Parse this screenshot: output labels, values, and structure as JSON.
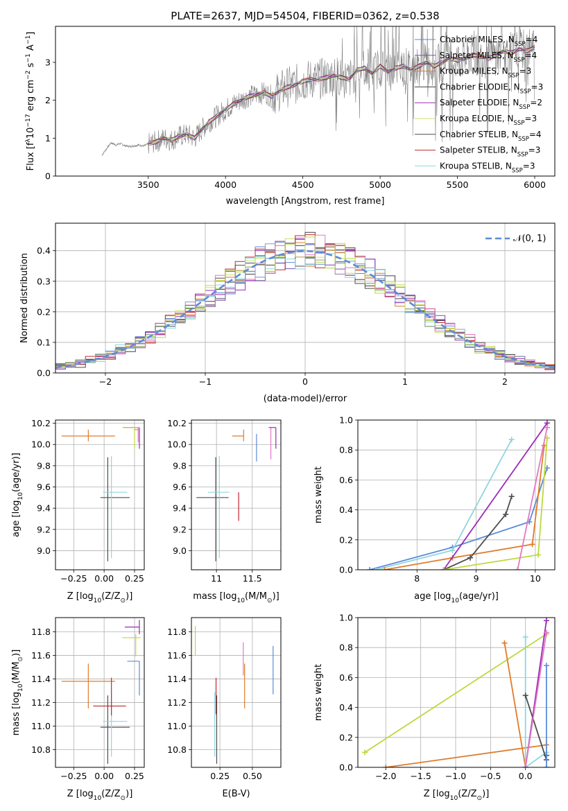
{
  "figure_title": "PLATE=2637, MJD=54504, FIBERID=0362, z=0.538",
  "colors": {
    "Chabrier MILES": "#5b8bd8",
    "Salpeter MILES": "#7a52a8",
    "Kroupa MILES": "#e07b2a",
    "Chabrier ELODIE": "#404040",
    "Salpeter ELODIE": "#9a2bb8",
    "Kroupa ELODIE": "#c7e36e",
    "Chabrier STELIB": "#4d4d4d",
    "Salpeter STELIB": "#c0272d",
    "Kroupa STELIB": "#8fd6de",
    "extra_pink": "#e377c2",
    "extra_lime": "#bcd93c",
    "extra_steel": "#7f9fbf",
    "normal_curve": "#5b8bd8",
    "data_spectrum": "#808080"
  },
  "chart_data": [
    {
      "id": "spectrum",
      "type": "line",
      "title": "PLATE=2637, MJD=54504, FIBERID=0362, z=0.538",
      "xlabel": "wavelength [Angstrom, rest frame]",
      "ylabel_parts": [
        "Flux [f",
        "λ",
        "10",
        "−17",
        " erg cm",
        "−2",
        " s",
        "−1",
        " A",
        "−1",
        "]"
      ],
      "xlim": [
        2900,
        6130
      ],
      "ylim": [
        0,
        3.95
      ],
      "xticks": [
        3500,
        4000,
        4500,
        5000,
        5500,
        6000
      ],
      "yticks": [
        0,
        1,
        2,
        3
      ],
      "legend_position": "upper right",
      "legend": [
        {
          "name": "Chabrier MILES",
          "nssp": "4",
          "color": "#5b8bd8"
        },
        {
          "name": "Salpeter MILES",
          "nssp": "4",
          "color": "#7a52a8"
        },
        {
          "name": "Kroupa MILES",
          "nssp": "3",
          "color": "#e07b2a"
        },
        {
          "name": "Chabrier ELODIE",
          "nssp": "3",
          "color": "#404040"
        },
        {
          "name": "Salpeter ELODIE",
          "nssp": "2",
          "color": "#9a2bb8"
        },
        {
          "name": "Kroupa ELODIE",
          "nssp": "3",
          "color": "#c7e36e"
        },
        {
          "name": "Chabrier STELIB",
          "nssp": "4",
          "color": "#4d4d4d"
        },
        {
          "name": "Salpeter STELIB",
          "nssp": "3",
          "color": "#c0272d"
        },
        {
          "name": "Kroupa STELIB",
          "nssp": "3",
          "color": "#8fd6de"
        }
      ],
      "data_x": [
        3200,
        3230,
        3260,
        3290,
        3320,
        3350,
        3380,
        3410,
        3440,
        3470,
        3500,
        3550,
        3600,
        3650,
        3700,
        3750,
        3800,
        3850,
        3900,
        3950,
        4000,
        4050,
        4100,
        4150,
        4200,
        4250,
        4300,
        4350,
        4400,
        4450,
        4500,
        4550,
        4600,
        4650,
        4700,
        4750,
        4800,
        4850,
        4900,
        4950,
        5000,
        5050,
        5100,
        5150,
        5200,
        5250,
        5300,
        5350,
        5400,
        5450,
        5500,
        5550,
        5600,
        5650,
        5700,
        5750,
        5800,
        5850,
        5900,
        5950,
        6000
      ],
      "data_y": [
        0.55,
        0.72,
        0.88,
        0.82,
        0.86,
        0.8,
        0.78,
        0.8,
        0.82,
        0.79,
        0.85,
        0.9,
        1.0,
        0.95,
        1.05,
        1.1,
        1.0,
        1.25,
        1.45,
        1.6,
        1.75,
        1.9,
        2.0,
        2.1,
        2.15,
        2.2,
        2.1,
        2.25,
        2.35,
        2.4,
        2.5,
        2.55,
        2.55,
        2.6,
        2.65,
        2.6,
        2.55,
        2.8,
        2.85,
        2.7,
        2.9,
        2.75,
        2.85,
        2.9,
        2.8,
        2.9,
        3.0,
        2.9,
        3.0,
        3.1,
        3.05,
        3.1,
        3.2,
        3.15,
        3.1,
        3.2,
        3.3,
        3.25,
        3.35,
        3.3,
        3.4
      ]
    },
    {
      "id": "residuals",
      "type": "histogram",
      "xlabel": "(data-model)/error",
      "ylabel": "Normed distribution",
      "xlim": [
        -2.5,
        2.5
      ],
      "ylim": [
        0,
        0.49
      ],
      "xticks": [
        -2,
        -1,
        0,
        1,
        2
      ],
      "yticks": [
        0.0,
        0.1,
        0.2,
        0.3,
        0.4
      ],
      "grid": true,
      "legend": [
        {
          "name": "𝒩(0, 1)",
          "style": "dashed",
          "color": "#5b8bd8"
        }
      ],
      "legend_position": "upper right",
      "bin_edges_start": -2.5,
      "bin_width": 0.1,
      "reference_curve": "gaussian(0,1)"
    },
    {
      "id": "z_vs_age",
      "type": "errorbar",
      "xlabel_parts": [
        "Z [log",
        "10",
        "(Z/Z",
        "⊙",
        ")]"
      ],
      "ylabel_parts": [
        "age  [log",
        "10",
        "(age/yr)]"
      ],
      "xlim": [
        -0.4,
        0.33
      ],
      "ylim": [
        8.82,
        10.23
      ],
      "xticks": [
        -0.25,
        0.0,
        0.25
      ],
      "xticklabels": [
        "−0.25",
        "0.00",
        "0.25"
      ],
      "yticks": [
        9.0,
        9.2,
        9.4,
        9.6,
        9.8,
        10.0,
        10.2
      ],
      "grid": true,
      "points": [
        {
          "x": -0.13,
          "xerr": [
            0.22,
            0.22
          ],
          "y": 10.08,
          "yerr": [
            0.05,
            0.06
          ],
          "color": "#e07b2a"
        },
        {
          "x": 0.03,
          "xerr": [
            0.06,
            0.18
          ],
          "y": 9.5,
          "yerr": [
            0.6,
            0.38
          ],
          "color": "#4d4d4d"
        },
        {
          "x": 0.06,
          "xerr": [
            0.07,
            0.13
          ],
          "y": 9.55,
          "yerr": [
            0.62,
            0.34
          ],
          "color": "#8fd6de"
        },
        {
          "x": 0.29,
          "xerr": [
            0.13,
            0.0
          ],
          "y": 10.16,
          "yerr": [
            0.2,
            0.0
          ],
          "color": "#9a2bb8"
        },
        {
          "x": 0.25,
          "xerr": [
            0.1,
            0.04
          ],
          "y": 10.16,
          "yerr": [
            0.2,
            0.0
          ],
          "color": "#bcd93c"
        },
        {
          "x": 0.28,
          "xerr": [
            0.03,
            0.01
          ],
          "y": 10.14,
          "yerr": [
            0.12,
            0.02
          ],
          "color": "#e377c2"
        }
      ]
    },
    {
      "id": "mass_vs_age",
      "type": "errorbar",
      "xlabel_parts": [
        "mass [log",
        "10",
        "(M/M",
        "⊙",
        ")]"
      ],
      "xlim": [
        10.65,
        11.9
      ],
      "ylim": [
        8.82,
        10.23
      ],
      "xticks": [
        11.0,
        11.5
      ],
      "yticks": [
        9.0,
        9.2,
        9.4,
        9.6,
        9.8,
        10.0,
        10.2
      ],
      "grid": true,
      "points": [
        {
          "x": 10.99,
          "xerr": [
            0.27,
            0.18
          ],
          "y": 9.5,
          "yerr": [
            0.6,
            0.38
          ],
          "color": "#4d4d4d"
        },
        {
          "x": 11.04,
          "xerr": [
            0.16,
            0.14
          ],
          "y": 9.55,
          "yerr": [
            0.62,
            0.34
          ],
          "color": "#8fd6de"
        },
        {
          "x": 11.31,
          "xerr": [
            0.0,
            0.0
          ],
          "y": 9.55,
          "yerr": [
            0.27,
            0.0
          ],
          "color": "#c0272d"
        },
        {
          "x": 11.38,
          "xerr": [
            0.16,
            0.0
          ],
          "y": 10.08,
          "yerr": [
            0.05,
            0.06
          ],
          "color": "#e07b2a"
        },
        {
          "x": 11.56,
          "xerr": [
            0.0,
            0.0
          ],
          "y": 10.1,
          "yerr": [
            0.26,
            0.0
          ],
          "color": "#5b8bd8"
        },
        {
          "x": 11.76,
          "xerr": [
            0.0,
            0.0
          ],
          "y": 10.14,
          "yerr": [
            0.28,
            0.02
          ],
          "color": "#e377c2"
        },
        {
          "x": 11.83,
          "xerr": [
            0.1,
            0.0
          ],
          "y": 10.16,
          "yerr": [
            0.2,
            0.0
          ],
          "color": "#9a2bb8"
        }
      ]
    },
    {
      "id": "age_vs_weight",
      "type": "line",
      "xlabel_parts": [
        "age  [log",
        "10",
        "(age/yr)]"
      ],
      "ylabel": "mass weight",
      "xlim": [
        7.0,
        10.33
      ],
      "ylim": [
        0,
        1.0
      ],
      "xticks": [
        8,
        9,
        10
      ],
      "yticks": [
        0.0,
        0.2,
        0.4,
        0.6,
        0.8,
        1.0
      ],
      "grid": true,
      "series": [
        {
          "color": "#5b8bd8",
          "x": [
            7.2,
            8.6,
            9.9,
            10.2
          ],
          "y": [
            0.0,
            0.15,
            0.32,
            0.68
          ]
        },
        {
          "color": "#8fd6de",
          "x": [
            7.3,
            8.6,
            9.6
          ],
          "y": [
            0.0,
            0.13,
            0.87
          ]
        },
        {
          "color": "#e07b2a",
          "x": [
            7.45,
            8.6,
            9.95,
            10.15
          ],
          "y": [
            0.0,
            0.08,
            0.17,
            0.83
          ]
        },
        {
          "color": "#9a2bb8",
          "x": [
            8.45,
            10.2
          ],
          "y": [
            0.0,
            0.98
          ]
        },
        {
          "color": "#4d4d4d",
          "x": [
            8.45,
            8.9,
            9.5,
            9.6
          ],
          "y": [
            0.0,
            0.08,
            0.37,
            0.49
          ]
        },
        {
          "color": "#bcd93c",
          "x": [
            8.45,
            10.05,
            10.2
          ],
          "y": [
            0.0,
            0.1,
            0.88
          ]
        },
        {
          "color": "#e377c2",
          "x": [
            9.7,
            10.2
          ],
          "y": [
            0.0,
            0.95
          ]
        }
      ]
    },
    {
      "id": "z_vs_mass",
      "type": "errorbar",
      "xlabel_parts": [
        "Z [log",
        "10",
        "(Z/Z",
        "⊙",
        ")]"
      ],
      "ylabel_parts": [
        "mass [log",
        "10",
        "(M/M",
        "⊙",
        ")]"
      ],
      "xlim": [
        -0.4,
        0.33
      ],
      "ylim": [
        10.65,
        11.92
      ],
      "xticks": [
        -0.25,
        0.0,
        0.25
      ],
      "xticklabels": [
        "−0.25",
        "0.00",
        "0.25"
      ],
      "yticks": [
        10.8,
        11.0,
        11.2,
        11.4,
        11.6,
        11.8
      ],
      "grid": true,
      "points": [
        {
          "x": -0.13,
          "xerr": [
            0.22,
            0.22
          ],
          "y": 11.38,
          "yerr": [
            0.23,
            0.15
          ],
          "color": "#e07b2a"
        },
        {
          "x": 0.03,
          "xerr": [
            0.06,
            0.18
          ],
          "y": 10.99,
          "yerr": [
            0.31,
            0.27
          ],
          "color": "#4d4d4d"
        },
        {
          "x": 0.06,
          "xerr": [
            0.07,
            0.13
          ],
          "y": 11.04,
          "yerr": [
            0.3,
            0.25
          ],
          "color": "#8fd6de"
        },
        {
          "x": 0.06,
          "xerr": [
            0.15,
            0.12
          ],
          "y": 11.17,
          "yerr": [
            0.08,
            0.24
          ],
          "color": "#c0272d"
        },
        {
          "x": 0.29,
          "xerr": [
            0.12,
            0.0
          ],
          "y": 11.84,
          "yerr": [
            0.06,
            0.06
          ],
          "color": "#9a2bb8"
        },
        {
          "x": 0.26,
          "xerr": [
            0.11,
            0.04
          ],
          "y": 11.75,
          "yerr": [
            0.16,
            0.03
          ],
          "color": "#bcd93c"
        },
        {
          "x": 0.29,
          "xerr": [
            0.1,
            0.0
          ],
          "y": 11.55,
          "yerr": [
            0.29,
            0.0
          ],
          "color": "#5b8bd8"
        }
      ]
    },
    {
      "id": "ebv_vs_mass",
      "type": "errorbar",
      "xlabel": "E(B-V)",
      "xlim": [
        0.03,
        0.72
      ],
      "ylim": [
        10.65,
        11.92
      ],
      "xticks": [
        0.25,
        0.5
      ],
      "xticklabels": [
        "0.25",
        "0.50"
      ],
      "yticks": [
        10.8,
        11.0,
        11.2,
        11.4,
        11.6,
        11.8
      ],
      "grid": true,
      "points": [
        {
          "x": 0.06,
          "y": 11.75,
          "yerr": [
            0.15,
            0.1
          ],
          "color": "#bcd93c"
        },
        {
          "x": 0.22,
          "y": 11.3,
          "yerr": [
            0.2,
            0.11
          ],
          "color": "#c0272d"
        },
        {
          "x": 0.225,
          "y": 10.99,
          "yerr": [
            0.31,
            0.27
          ],
          "color": "#4d4d4d"
        },
        {
          "x": 0.21,
          "y": 11.04,
          "yerr": [
            0.3,
            0.25
          ],
          "color": "#8fd6de"
        },
        {
          "x": 0.44,
          "y": 11.38,
          "yerr": [
            0.23,
            0.15
          ],
          "color": "#e07b2a"
        },
        {
          "x": 0.43,
          "y": 11.55,
          "yerr": [
            0.12,
            0.16
          ],
          "color": "#e377c2"
        },
        {
          "x": 0.66,
          "y": 11.5,
          "yerr": [
            0.23,
            0.18
          ],
          "color": "#5b8bd8"
        }
      ]
    },
    {
      "id": "z_vs_weight",
      "type": "line",
      "xlabel_parts": [
        "Z [log",
        "10",
        "(Z/Z",
        "⊙",
        ")]"
      ],
      "ylabel": "mass weight",
      "xlim": [
        -2.4,
        0.42
      ],
      "ylim": [
        0,
        1.0
      ],
      "xticks": [
        -2.0,
        -1.5,
        -1.0,
        -0.5,
        0.0
      ],
      "xticklabels": [
        "−2.0",
        "−1.5",
        "−1.0",
        "−0.5",
        "0.0"
      ],
      "yticks": [
        0.0,
        0.2,
        0.4,
        0.6,
        0.8,
        1.0
      ],
      "grid": true,
      "series": [
        {
          "color": "#bcd93c",
          "x": [
            -2.3,
            0.3
          ],
          "y": [
            0.1,
            0.89
          ]
        },
        {
          "color": "#e07b2a",
          "x": [
            -2.0,
            0.3
          ],
          "y": [
            0.0,
            0.15
          ]
        },
        {
          "color": "#e07b2a",
          "x": [
            -0.3,
            0.0
          ],
          "y": [
            0.83,
            0.0
          ]
        },
        {
          "color": "#8fd6de",
          "x": [
            0.0,
            0.0,
            0.3
          ],
          "y": [
            0.87,
            0.0,
            0.1
          ]
        },
        {
          "color": "#9a2bb8",
          "x": [
            0.0,
            0.3
          ],
          "y": [
            0.0,
            0.98
          ]
        },
        {
          "color": "#4d4d4d",
          "x": [
            0.0,
            0.3,
            0.3
          ],
          "y": [
            0.48,
            0.05,
            0.08
          ]
        },
        {
          "color": "#e377c2",
          "x": [
            0.0,
            0.3
          ],
          "y": [
            0.0,
            0.9
          ]
        },
        {
          "color": "#5b8bd8",
          "x": [
            0.3,
            0.3
          ],
          "y": [
            0.0,
            0.68
          ]
        }
      ]
    }
  ]
}
